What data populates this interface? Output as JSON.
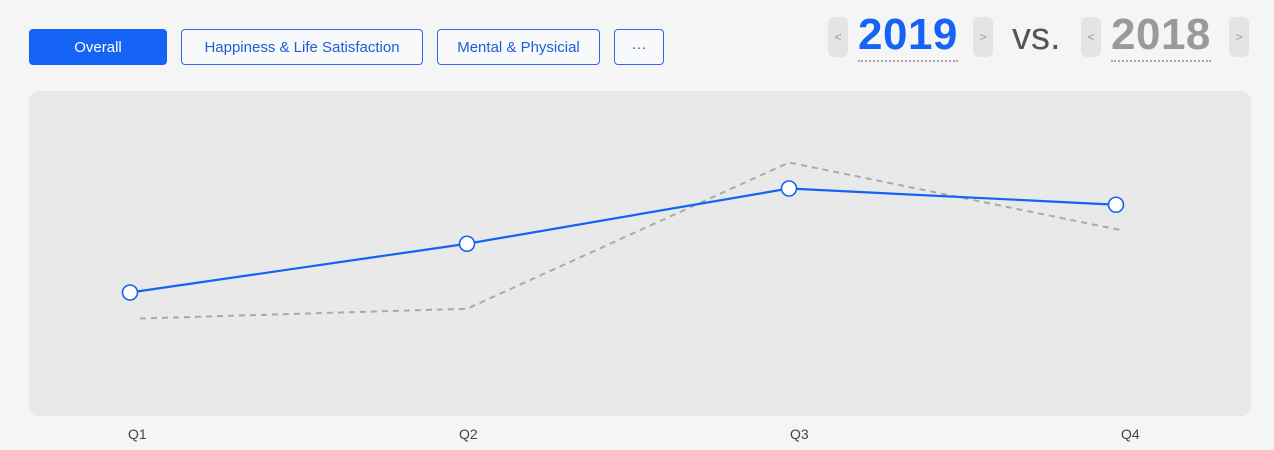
{
  "tabs": [
    {
      "label": "Overall",
      "active": true
    },
    {
      "label": "Happiness & Life Satisfaction",
      "active": false
    },
    {
      "label": "Mental & Physicial",
      "active": false
    },
    {
      "label": "···",
      "active": false
    }
  ],
  "comparison": {
    "current_year": "2019",
    "vs_label": "vs.",
    "previous_year": "2018",
    "prev_arrow": "<",
    "next_arrow": ">"
  },
  "colors": {
    "accent": "#1463f5",
    "previous": "#aaaaaa",
    "chart_bg": "#e9e9e9"
  },
  "chart_data": {
    "type": "line",
    "categories": [
      "Q1",
      "Q2",
      "Q3",
      "Q4"
    ],
    "ylim": [
      0,
      100
    ],
    "series": [
      {
        "name": "2019",
        "values": [
          38,
          53,
          70,
          65
        ],
        "style": "solid",
        "markers": true
      },
      {
        "name": "2018",
        "values": [
          30,
          33,
          78,
          57
        ],
        "style": "dashed",
        "markers": false
      }
    ]
  }
}
